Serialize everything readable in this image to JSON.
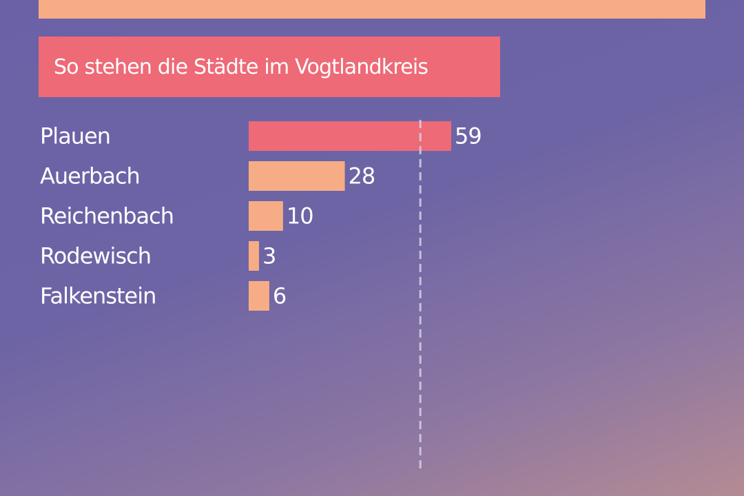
{
  "chart_data": {
    "type": "bar",
    "orientation": "horizontal",
    "title": "So stehen die Städte im Vogtlandkreis",
    "categories": [
      "Plauen",
      "Auerbach",
      "Reichenbach",
      "Rodewisch",
      "Falkenstein"
    ],
    "values": [
      59,
      28,
      10,
      3,
      6
    ],
    "highlight_index": 0,
    "reference_value": 50,
    "xlim": [
      0,
      59
    ],
    "grid": false,
    "legend": "none"
  },
  "colors": {
    "highlight": "#ee6a77",
    "bar": "#f6ad85",
    "banner": "#f6ad85",
    "title_box": "#ee6a77",
    "reference_line": "#d6d0e6"
  }
}
